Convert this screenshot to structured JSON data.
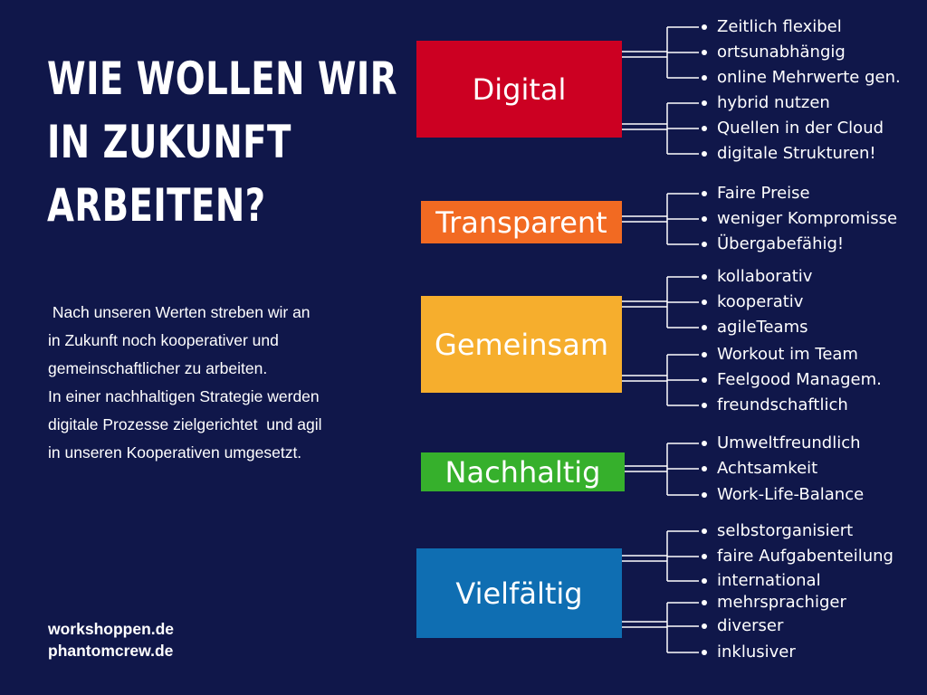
{
  "headline": [
    "WIE WOLLEN WIR",
    "IN ZUKUNFT",
    "ARBEITEN?"
  ],
  "intro": [
    " Nach unseren Werten streben wir an",
    "in Zukunft noch kooperativer und",
    "gemeinschaftlicher zu arbeiten.",
    "In einer nachhaltigen Strategie werden",
    "digitale Prozesse zielgerichtet  und agil",
    "in unseren Kooperativen umgesetzt."
  ],
  "websites": [
    "workshoppen.de",
    "phantomcrew.de"
  ],
  "colors": {
    "background": "#10174a",
    "digital": "#cc0022",
    "transparent": "#f26a22",
    "gemeinsam": "#f6ae2d",
    "nachhaltig": "#36b02c",
    "vielfaeltig": "#0f6eb2"
  },
  "categories": [
    {
      "label": "Digital",
      "color": "#cc0022",
      "items": [
        "Zeitlich flexibel",
        "ortsunabhängig",
        "online Mehrwerte gen.",
        "hybrid nutzen",
        "Quellen in der Cloud",
        "digitale Strukturen!"
      ]
    },
    {
      "label": "Transparent",
      "color": "#f26a22",
      "items": [
        "Faire Preise",
        "weniger Kompromisse",
        "Übergabefähig!"
      ]
    },
    {
      "label": "Gemeinsam",
      "color": "#f6ae2d",
      "items": [
        "kollaborativ",
        "kooperativ",
        "agileTeams",
        "Workout im Team",
        "Feelgood Managem.",
        "freundschaftlich"
      ]
    },
    {
      "label": "Nachhaltig",
      "color": "#36b02c",
      "items": [
        "Umweltfreundlich",
        "Achtsamkeit",
        "Work-Life-Balance"
      ]
    },
    {
      "label": "Vielfältig",
      "color": "#0f6eb2",
      "items": [
        "selbstorganisiert",
        "faire Aufgabenteilung",
        "international",
        "mehrsprachiger",
        "diverser",
        "inklusiver"
      ]
    }
  ]
}
